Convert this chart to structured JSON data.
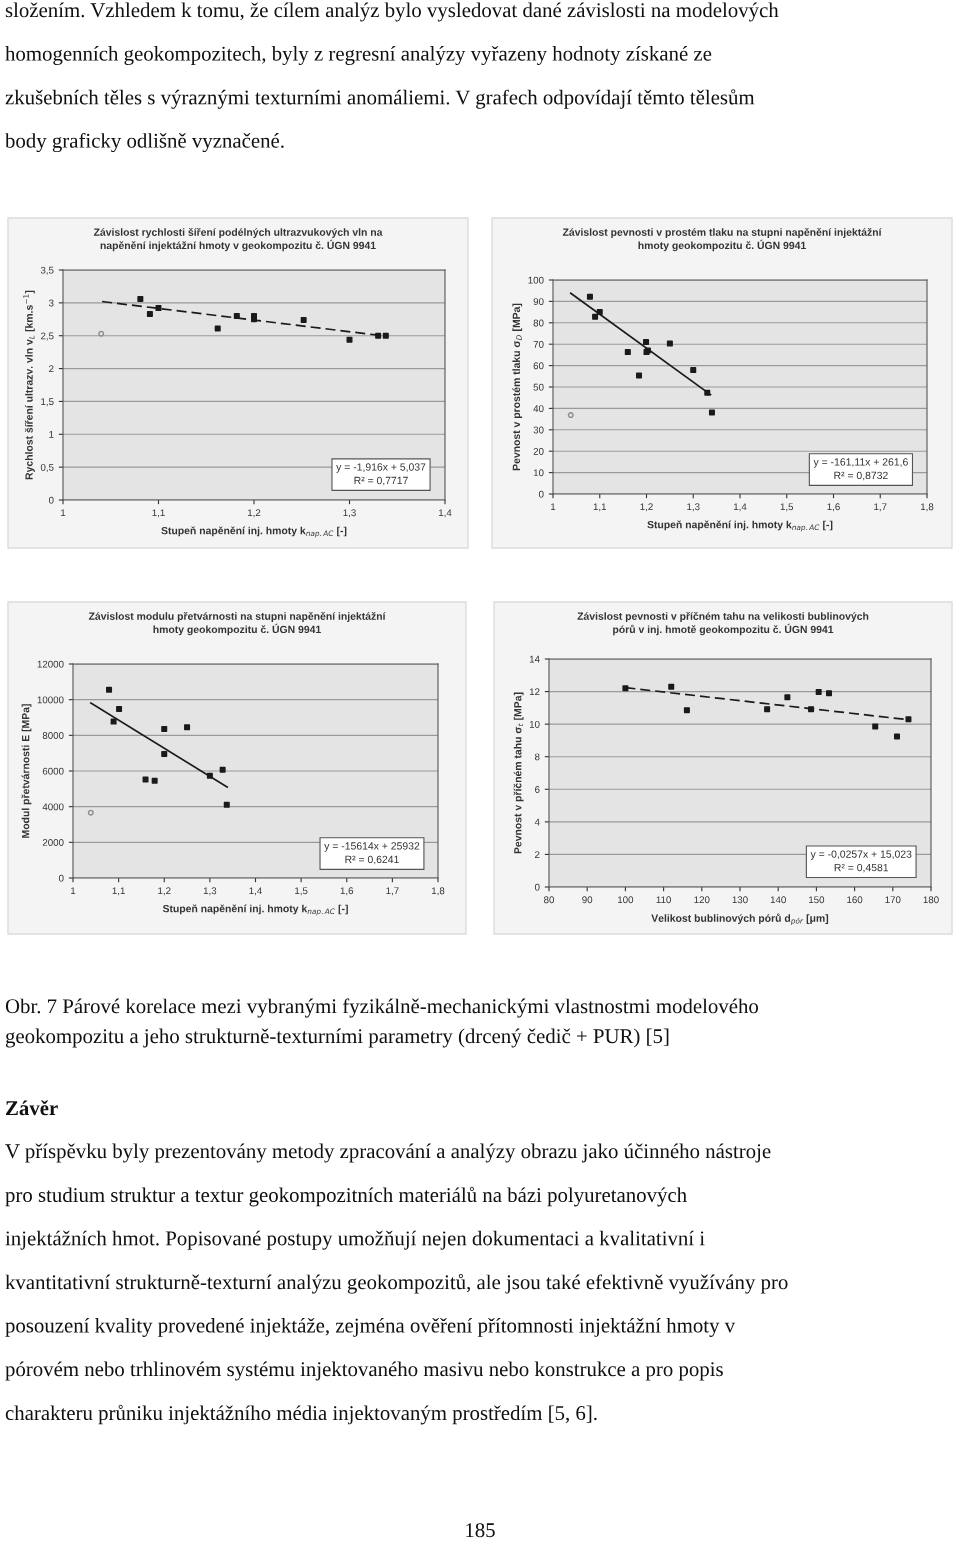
{
  "chart_data": [
    {
      "type": "other",
      "annotations": [
        "složením. Vzhledem k tomu, že cílem analýz bylo vysledovat dané závislosti na modelových",
        "homogenních geokompozitech, byly z regresní analýzy vyřazeny hodnoty získané ze",
        "zkušebních těles s výraznými texturními anomáliemi. V grafech odpovídají těmto tělesům",
        "body graficky odlišně vyznačené."
      ]
    },
    {
      "type": "scatter",
      "title": "Závislost rychlosti šíření podélných ultrazvukových vln na\nnapěnění injektážní hmoty v geokompozitu č. ÚGN 9941",
      "xlabel": "Stupeň napěnění inj. hmoty k$_{nap.AC}$ [-]",
      "ylabel": "Rychlost šíření ultrazv. vln v$_{L}$ [km.s$^{−1}$]",
      "xlim": [
        1.0,
        1.4
      ],
      "xticks": [
        1,
        {
          "value": 1.1,
          "label": "1,1"
        },
        {
          "value": 1.2,
          "label": "1,2"
        },
        {
          "value": 1.3,
          "label": "1,3"
        },
        {
          "value": 1.4,
          "label": "1,4"
        }
      ],
      "ylim": [
        0,
        3.5
      ],
      "yticks": [
        0,
        {
          "value": 0.5,
          "label": "0,5"
        },
        1,
        {
          "value": 1.5,
          "label": "1,5"
        },
        2,
        {
          "value": 2.5,
          "label": "2,5"
        },
        3,
        {
          "value": 3.5,
          "label": "3,5"
        }
      ],
      "grid": "y",
      "legend": false,
      "series": [
        {
          "type": "scatter",
          "marker": "square",
          "color": "#1a1a1a",
          "x": [
            1.081,
            1.091,
            1.1,
            1.162,
            1.182,
            1.2,
            1.2,
            1.252,
            1.3,
            1.33,
            1.338
          ],
          "values": [
            3.06,
            2.83,
            2.92,
            2.61,
            2.8,
            2.8,
            2.75,
            2.74,
            2.44,
            2.5,
            2.5
          ]
        },
        {
          "type": "scatter",
          "marker": "circle",
          "color": "#8c8c8c",
          "x": [
            1.04
          ],
          "values": [
            2.53
          ]
        },
        {
          "type": "line",
          "marker": "none",
          "line_style": "dashed",
          "color": "#1a1a1a",
          "x": [
            1.041,
            1.34
          ],
          "values": [
            3.02,
            2.49
          ]
        }
      ],
      "annotations": [
        "y = -1,916x + 5,037",
        "R² = 0,7717"
      ]
    },
    {
      "type": "scatter",
      "title": "Závislost pevnosti v prostém tlaku na stupni napěnění injektážní\nhmoty geokompozitu č. ÚGN 9941",
      "xlabel": "Stupeň napěnění inj. hmoty k$_{nap.AC}$ [-]",
      "ylabel": "Pevnost v prostém tlaku σ$_{D}$ [MPa]",
      "xlim": [
        1.0,
        1.8
      ],
      "xticks": [
        1,
        {
          "value": 1.1,
          "label": "1,1"
        },
        {
          "value": 1.2,
          "label": "1,2"
        },
        {
          "value": 1.3,
          "label": "1,3"
        },
        {
          "value": 1.4,
          "label": "1,4"
        },
        {
          "value": 1.5,
          "label": "1,5"
        },
        {
          "value": 1.6,
          "label": "1,6"
        },
        {
          "value": 1.7,
          "label": "1,7"
        },
        {
          "value": 1.8,
          "label": "1,8"
        }
      ],
      "ylim": [
        0,
        100
      ],
      "yticks": [
        0,
        10,
        20,
        30,
        40,
        50,
        60,
        70,
        80,
        90,
        100
      ],
      "grid": "y",
      "legend": false,
      "series": [
        {
          "type": "scatter",
          "marker": "square",
          "color": "#1a1a1a",
          "x": [
            1.079,
            1.09,
            1.1,
            1.16,
            1.184,
            1.199,
            1.2,
            1.203,
            1.25,
            1.3,
            1.33,
            1.34
          ],
          "values": [
            92.2,
            82.8,
            85.1,
            66.3,
            55.4,
            71.0,
            66.3,
            67.1,
            70.3,
            57.9,
            47.3,
            38.1
          ]
        },
        {
          "type": "scatter",
          "marker": "circle",
          "color": "#8c8c8c",
          "x": [
            1.038
          ],
          "values": [
            36.9
          ]
        },
        {
          "type": "line",
          "marker": "none",
          "line_style": "solid",
          "color": "#1a1a1a",
          "x": [
            1.038,
            1.337
          ],
          "values": [
            93.8,
            46.4
          ]
        }
      ],
      "annotations": [
        "y = -161,11x + 261,6",
        "R² = 0,8732"
      ]
    },
    {
      "type": "scatter",
      "title": "Závislost modulu přetvárnosti na stupni napěnění injektážní\nhmoty geokompozitu č. ÚGN 9941",
      "xlabel": "Stupeň napěnění inj. hmoty k$_{nap.AC}$ [-]",
      "ylabel": "Modul přetvárnosti E [MPa]",
      "xlim": [
        1.0,
        1.8
      ],
      "xticks": [
        1,
        {
          "value": 1.1,
          "label": "1,1"
        },
        {
          "value": 1.2,
          "label": "1,2"
        },
        {
          "value": 1.3,
          "label": "1,3"
        },
        {
          "value": 1.4,
          "label": "1,4"
        },
        {
          "value": 1.5,
          "label": "1,5"
        },
        {
          "value": 1.6,
          "label": "1,6"
        },
        {
          "value": 1.7,
          "label": "1,7"
        },
        {
          "value": 1.8,
          "label": "1,8"
        }
      ],
      "ylim": [
        0,
        12000
      ],
      "yticks": [
        0,
        2000,
        4000,
        6000,
        8000,
        10000,
        12000
      ],
      "grid": "y",
      "legend": false,
      "series": [
        {
          "type": "scatter",
          "marker": "square",
          "color": "#1a1a1a",
          "x": [
            1.079,
            1.089,
            1.101,
            1.159,
            1.179,
            1.2,
            1.2,
            1.25,
            1.3,
            1.328,
            1.337
          ],
          "values": [
            10560,
            8770,
            9480,
            5530,
            5460,
            8360,
            6950,
            8450,
            5740,
            6070,
            4110
          ]
        },
        {
          "type": "scatter",
          "marker": "circle",
          "color": "#8c8c8c",
          "x": [
            1.039
          ],
          "values": [
            3660
          ]
        },
        {
          "type": "line",
          "marker": "none",
          "line_style": "solid",
          "color": "#1a1a1a",
          "x": [
            1.039,
            1.338
          ],
          "values": [
            9810,
            5100
          ]
        }
      ],
      "annotations": [
        "y = -15614x + 25932",
        "R² = 0,6241"
      ]
    },
    {
      "type": "scatter",
      "title": "Závislost pevnosti v příčném tahu na velikosti bublinových\npórů v inj. hmotě geokompozitu č. ÚGN 9941",
      "xlabel": "Velikost bublinových pórů d$_{pór}$ [μm]",
      "ylabel": "Pevnost v příčném tahu σ$_{t}$ [MPa]",
      "xlim": [
        80,
        180
      ],
      "xticks": [
        80,
        90,
        100,
        110,
        120,
        130,
        140,
        150,
        160,
        170,
        180
      ],
      "ylim": [
        0,
        14
      ],
      "yticks": [
        0,
        2,
        4,
        6,
        8,
        10,
        12,
        14
      ],
      "grid": "y",
      "legend": false,
      "series": [
        {
          "type": "scatter",
          "marker": "square",
          "color": "#1a1a1a",
          "x": [
            100.0,
            112.0,
            116.1,
            137.1,
            142.4,
            148.6,
            150.6,
            153.3,
            165.4,
            171.1,
            174.1
          ],
          "values": [
            12.2,
            12.3,
            10.86,
            10.92,
            11.65,
            10.92,
            11.98,
            11.9,
            9.86,
            9.24,
            10.3
          ]
        },
        {
          "type": "line",
          "marker": "none",
          "line_style": "dashed",
          "color": "#1a1a1a",
          "x": [
            100.0,
            174.1
          ],
          "values": [
            12.24,
            10.27
          ]
        }
      ],
      "annotations": [
        "y = -0,0257x + 15,023",
        "R² = 0,4581"
      ]
    },
    {
      "type": "other",
      "annotations": [
        "Obr. 7 Párové korelace mezi vybranými fyzikálně-mechanickými vlastnostmi modelového",
        "geokompozitu a jeho strukturně-texturními parametry (drcený čedič + PUR) [5]",
        "Závěr",
        "V příspěvku byly prezentovány metody zpracování a analýzy obrazu jako účinného nástroje",
        "pro studium struktur a textur geokompozitních materiálů na bázi polyuretanových",
        "injektážních hmot. Popisované postupy umožňují nejen dokumentaci a kvalitativní i",
        "kvantitativní strukturně-texturní analýzu geokompozitů, ale jsou také efektivně využívány pro",
        "posouzení kvality provedené injektáže, zejména ověření přítomnosti injektážní hmoty v",
        "pórovém nebo trhlinovém systému injektovaného masivu nebo konstrukce a pro popis",
        "charakteru průniku injektážního média injektovaným prostředím [5, 6].",
        "185"
      ]
    }
  ]
}
